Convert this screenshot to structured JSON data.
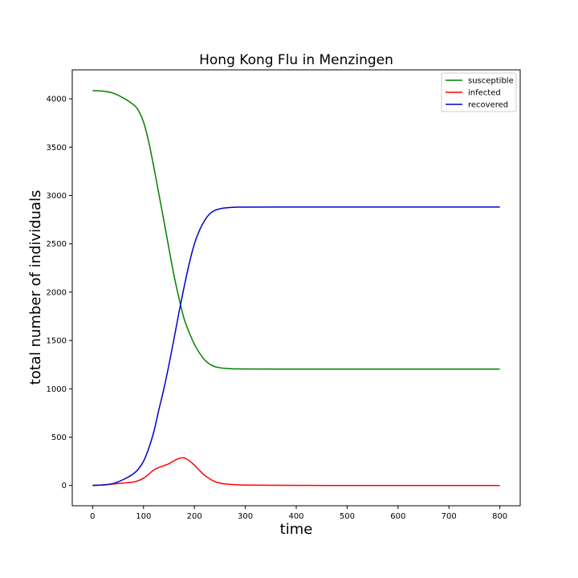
{
  "chart_data": {
    "type": "line",
    "title": "Hong Kong Flu in Menzingen",
    "xlabel": "time",
    "ylabel": "total number of individuals",
    "xlim": [
      -40,
      840
    ],
    "ylim": [
      -210,
      4300
    ],
    "xticks": [
      0,
      100,
      200,
      300,
      400,
      500,
      600,
      700,
      800
    ],
    "yticks": [
      0,
      500,
      1000,
      1500,
      2000,
      2500,
      3000,
      3500,
      4000
    ],
    "grid": false,
    "legend_position": "top-right",
    "series": [
      {
        "name": "susceptible",
        "color": "#008000",
        "points": [
          [
            0,
            4085
          ],
          [
            20,
            4080
          ],
          [
            40,
            4060
          ],
          [
            60,
            4010
          ],
          [
            80,
            3940
          ],
          [
            90,
            3880
          ],
          [
            100,
            3760
          ],
          [
            110,
            3560
          ],
          [
            120,
            3300
          ],
          [
            130,
            3020
          ],
          [
            140,
            2740
          ],
          [
            150,
            2450
          ],
          [
            160,
            2170
          ],
          [
            170,
            1930
          ],
          [
            180,
            1720
          ],
          [
            190,
            1580
          ],
          [
            200,
            1460
          ],
          [
            210,
            1370
          ],
          [
            220,
            1300
          ],
          [
            230,
            1255
          ],
          [
            240,
            1230
          ],
          [
            250,
            1218
          ],
          [
            260,
            1211
          ],
          [
            270,
            1208
          ],
          [
            280,
            1206
          ],
          [
            300,
            1205
          ],
          [
            400,
            1204
          ],
          [
            500,
            1204
          ],
          [
            600,
            1204
          ],
          [
            700,
            1204
          ],
          [
            800,
            1204
          ]
        ]
      },
      {
        "name": "infected",
        "color": "#ff0000",
        "points": [
          [
            0,
            2
          ],
          [
            20,
            5
          ],
          [
            40,
            15
          ],
          [
            60,
            25
          ],
          [
            80,
            35
          ],
          [
            90,
            50
          ],
          [
            100,
            75
          ],
          [
            110,
            115
          ],
          [
            120,
            160
          ],
          [
            130,
            185
          ],
          [
            140,
            205
          ],
          [
            150,
            225
          ],
          [
            160,
            255
          ],
          [
            170,
            280
          ],
          [
            180,
            285
          ],
          [
            190,
            255
          ],
          [
            200,
            210
          ],
          [
            210,
            155
          ],
          [
            220,
            105
          ],
          [
            230,
            68
          ],
          [
            240,
            40
          ],
          [
            250,
            25
          ],
          [
            260,
            15
          ],
          [
            280,
            8
          ],
          [
            300,
            4
          ],
          [
            350,
            2
          ],
          [
            400,
            1
          ],
          [
            500,
            0
          ],
          [
            600,
            0
          ],
          [
            700,
            0
          ],
          [
            800,
            0
          ]
        ]
      },
      {
        "name": "recovered",
        "color": "#0000cc",
        "points": [
          [
            0,
            0
          ],
          [
            20,
            5
          ],
          [
            40,
            20
          ],
          [
            60,
            60
          ],
          [
            80,
            120
          ],
          [
            90,
            170
          ],
          [
            100,
            250
          ],
          [
            110,
            380
          ],
          [
            120,
            550
          ],
          [
            130,
            780
          ],
          [
            140,
            1000
          ],
          [
            150,
            1250
          ],
          [
            160,
            1520
          ],
          [
            170,
            1800
          ],
          [
            180,
            2060
          ],
          [
            190,
            2300
          ],
          [
            200,
            2500
          ],
          [
            210,
            2640
          ],
          [
            220,
            2740
          ],
          [
            230,
            2810
          ],
          [
            240,
            2845
          ],
          [
            250,
            2862
          ],
          [
            260,
            2871
          ],
          [
            270,
            2876
          ],
          [
            280,
            2879
          ],
          [
            300,
            2880
          ],
          [
            400,
            2881
          ],
          [
            500,
            2881
          ],
          [
            600,
            2881
          ],
          [
            700,
            2881
          ],
          [
            800,
            2881
          ]
        ]
      }
    ]
  }
}
